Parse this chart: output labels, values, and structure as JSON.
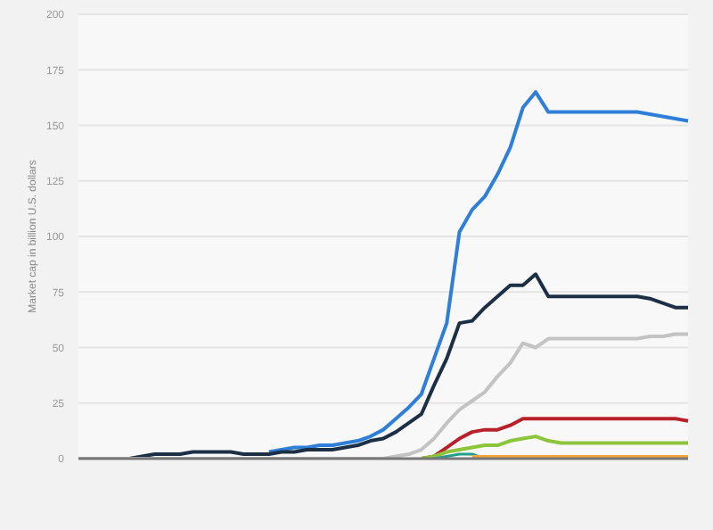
{
  "chart_data": {
    "type": "line",
    "ylabel": "Market cap in billion U.S. dollars",
    "categories": [
      null,
      null,
      null,
      null,
      null,
      null,
      null,
      null,
      null,
      null,
      null,
      null,
      null,
      null,
      null,
      null,
      null,
      null,
      null,
      null,
      null,
      null,
      null,
      null,
      null,
      null,
      null,
      null,
      null,
      null,
      null,
      null,
      null,
      null,
      null,
      null,
      null,
      null,
      null,
      null,
      null,
      null,
      null,
      null,
      null,
      null,
      null,
      null,
      null
    ],
    "series": [
      {
        "color": "#2f7ed8",
        "values": [
          null,
          null,
          null,
          null,
          null,
          null,
          null,
          null,
          null,
          null,
          null,
          null,
          null,
          null,
          null,
          3,
          4,
          5,
          5,
          6,
          6,
          7,
          8,
          10,
          13,
          18,
          23,
          29,
          45,
          61,
          102,
          112,
          118,
          128,
          140,
          158,
          165,
          156,
          156,
          156,
          156,
          156,
          156,
          156,
          156,
          155,
          154,
          153,
          152
        ]
      },
      {
        "color": "#1c2f45",
        "values": [
          0,
          0,
          0,
          0,
          0,
          1,
          2,
          2,
          2,
          3,
          3,
          3,
          3,
          2,
          2,
          2,
          3,
          3,
          4,
          4,
          4,
          5,
          6,
          8,
          9,
          12,
          16,
          20,
          33,
          45,
          61,
          62,
          68,
          73,
          78,
          78,
          83,
          73,
          73,
          73,
          73,
          73,
          73,
          73,
          73,
          72,
          70,
          68,
          68
        ]
      },
      {
        "color": "#c3c3c3",
        "values": [
          0,
          0,
          0,
          0,
          0,
          0,
          0,
          0,
          0,
          0,
          0,
          0,
          0,
          0,
          0,
          0,
          0,
          0,
          0,
          0,
          0,
          0,
          0,
          0,
          0,
          1,
          2,
          4,
          9,
          16,
          22,
          26,
          30,
          37,
          43,
          52,
          50,
          54,
          54,
          54,
          54,
          54,
          54,
          54,
          54,
          55,
          55,
          56,
          56
        ]
      },
      {
        "color": "#b8202a",
        "values": [
          null,
          null,
          null,
          null,
          null,
          null,
          null,
          null,
          null,
          null,
          null,
          null,
          null,
          null,
          null,
          null,
          null,
          null,
          null,
          null,
          null,
          null,
          null,
          null,
          null,
          null,
          null,
          0,
          1,
          5,
          9,
          12,
          13,
          13,
          15,
          18,
          18,
          18,
          18,
          18,
          18,
          18,
          18,
          18,
          18,
          18,
          18,
          18,
          17
        ]
      },
      {
        "color": "#8cc43c",
        "values": [
          null,
          null,
          null,
          null,
          null,
          null,
          null,
          null,
          null,
          null,
          null,
          null,
          null,
          null,
          null,
          null,
          null,
          null,
          null,
          null,
          null,
          null,
          null,
          null,
          null,
          null,
          null,
          0,
          1,
          3,
          4,
          5,
          6,
          6,
          8,
          9,
          10,
          8,
          7,
          7,
          7,
          7,
          7,
          7,
          7,
          7,
          7,
          7,
          7
        ]
      },
      {
        "color": "#1f9e8a",
        "values": [
          null,
          null,
          null,
          null,
          null,
          null,
          null,
          null,
          null,
          null,
          null,
          null,
          null,
          null,
          null,
          null,
          null,
          null,
          null,
          null,
          null,
          null,
          null,
          null,
          null,
          null,
          null,
          null,
          0,
          1,
          2,
          2,
          0,
          null,
          null,
          null,
          null,
          null,
          null,
          null,
          null,
          null,
          null,
          null,
          null,
          null,
          null,
          null,
          null
        ]
      },
      {
        "color": "#f2a33a",
        "values": [
          null,
          null,
          null,
          null,
          null,
          null,
          null,
          null,
          null,
          null,
          null,
          null,
          null,
          null,
          null,
          null,
          null,
          null,
          null,
          null,
          null,
          null,
          null,
          null,
          null,
          null,
          null,
          null,
          null,
          null,
          null,
          1,
          1,
          1,
          1,
          1,
          1,
          1,
          1,
          1,
          1,
          1,
          1,
          1,
          1,
          1,
          1,
          1,
          1
        ]
      }
    ],
    "ylim": [
      0,
      200
    ],
    "yticks": [
      0,
      25,
      50,
      75,
      100,
      125,
      150,
      175,
      200
    ],
    "grid": "y",
    "legend": false,
    "tick_labels": "y",
    "marker": "none",
    "line_style": "solid"
  }
}
